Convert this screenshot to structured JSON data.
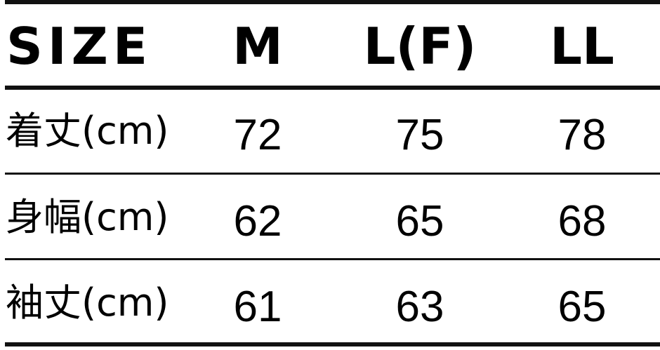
{
  "header": {
    "label": "SIZE",
    "sizes": [
      "M",
      "L(F)",
      "LL"
    ]
  },
  "rows": [
    {
      "label": "着丈(cm)",
      "values": [
        "72",
        "75",
        "78"
      ]
    },
    {
      "label": "身幅(cm)",
      "values": [
        "62",
        "65",
        "68"
      ]
    },
    {
      "label": "袖丈(cm)",
      "values": [
        "61",
        "63",
        "65"
      ]
    }
  ]
}
